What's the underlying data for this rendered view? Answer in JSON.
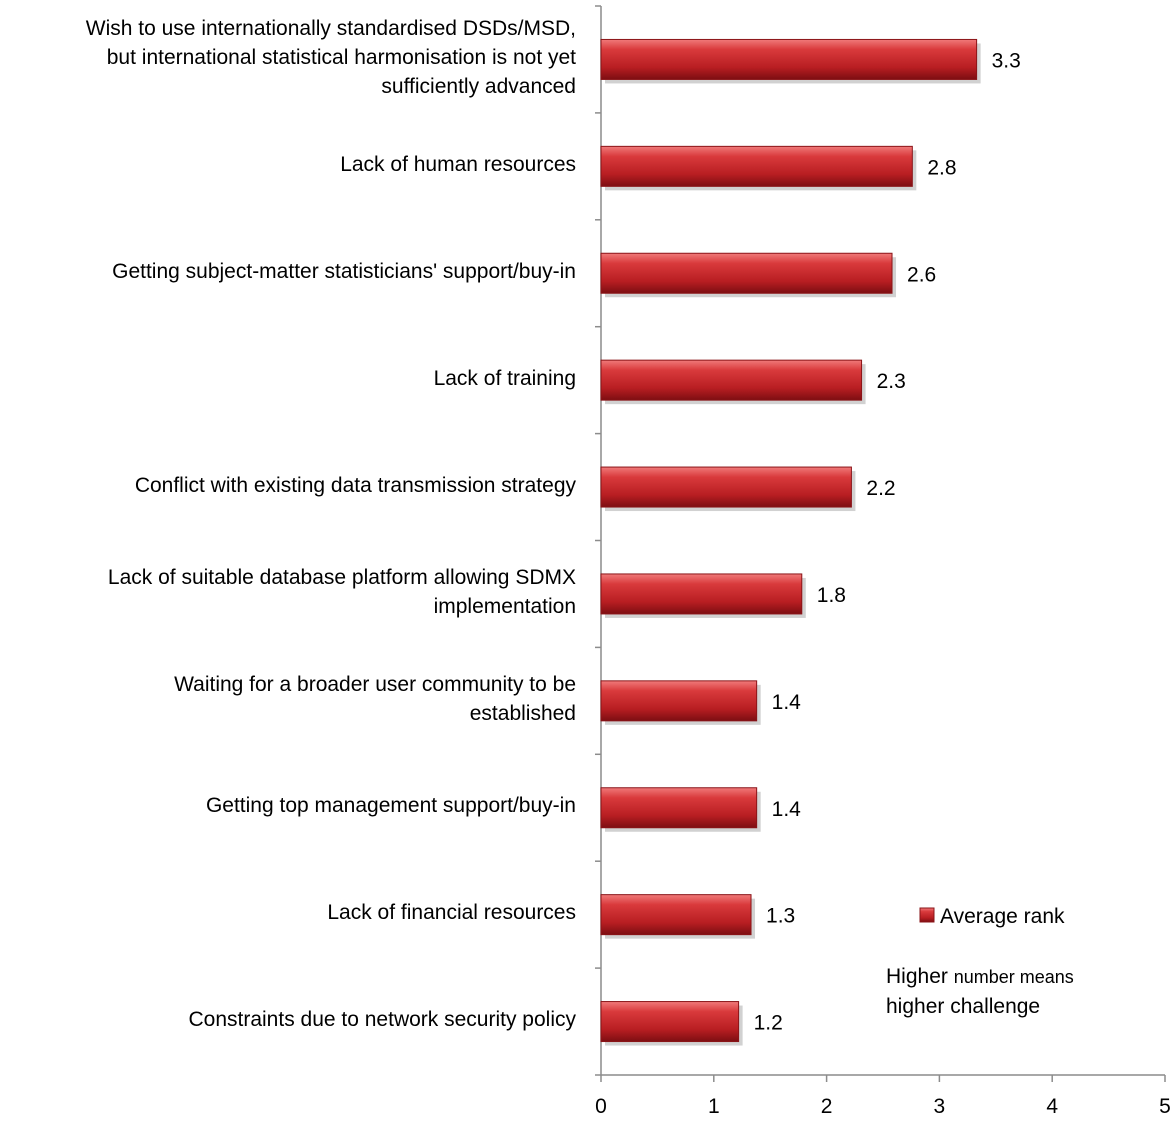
{
  "chart_data": {
    "type": "bar",
    "orientation": "horizontal",
    "categories": [
      "Wish to use internationally standardised DSDs/MSD,\nbut international statistical harmonisation is not yet\nsufficiently advanced",
      "Lack of human resources",
      "Getting subject-matter statisticians' support/buy-in",
      "Lack of training",
      "Conflict with existing data transmission strategy",
      "Lack of suitable database platform allowing SDMX\nimplementation",
      "Waiting for a broader user community to be\nestablished",
      "Getting top management support/buy-in",
      "Lack of financial resources",
      "Constraints due to network security policy"
    ],
    "series": [
      {
        "name": "Average rank",
        "values": [
          3.33,
          2.76,
          2.58,
          2.31,
          2.22,
          1.78,
          1.38,
          1.38,
          1.33,
          1.22
        ],
        "labels": [
          "3.3",
          "2.8",
          "2.6",
          "2.3",
          "2.2",
          "1.8",
          "1.4",
          "1.4",
          "1.3",
          "1.2"
        ],
        "color": "#c0262a"
      }
    ],
    "xlim": [
      0,
      5
    ],
    "xticks": [
      0,
      1,
      2,
      3,
      4,
      5
    ],
    "grid": false,
    "legend": {
      "position": "right",
      "entry": "Average rank"
    },
    "annotation": {
      "part1": "Higher ",
      "part2": "number means",
      "part3": "higher challenge"
    }
  }
}
